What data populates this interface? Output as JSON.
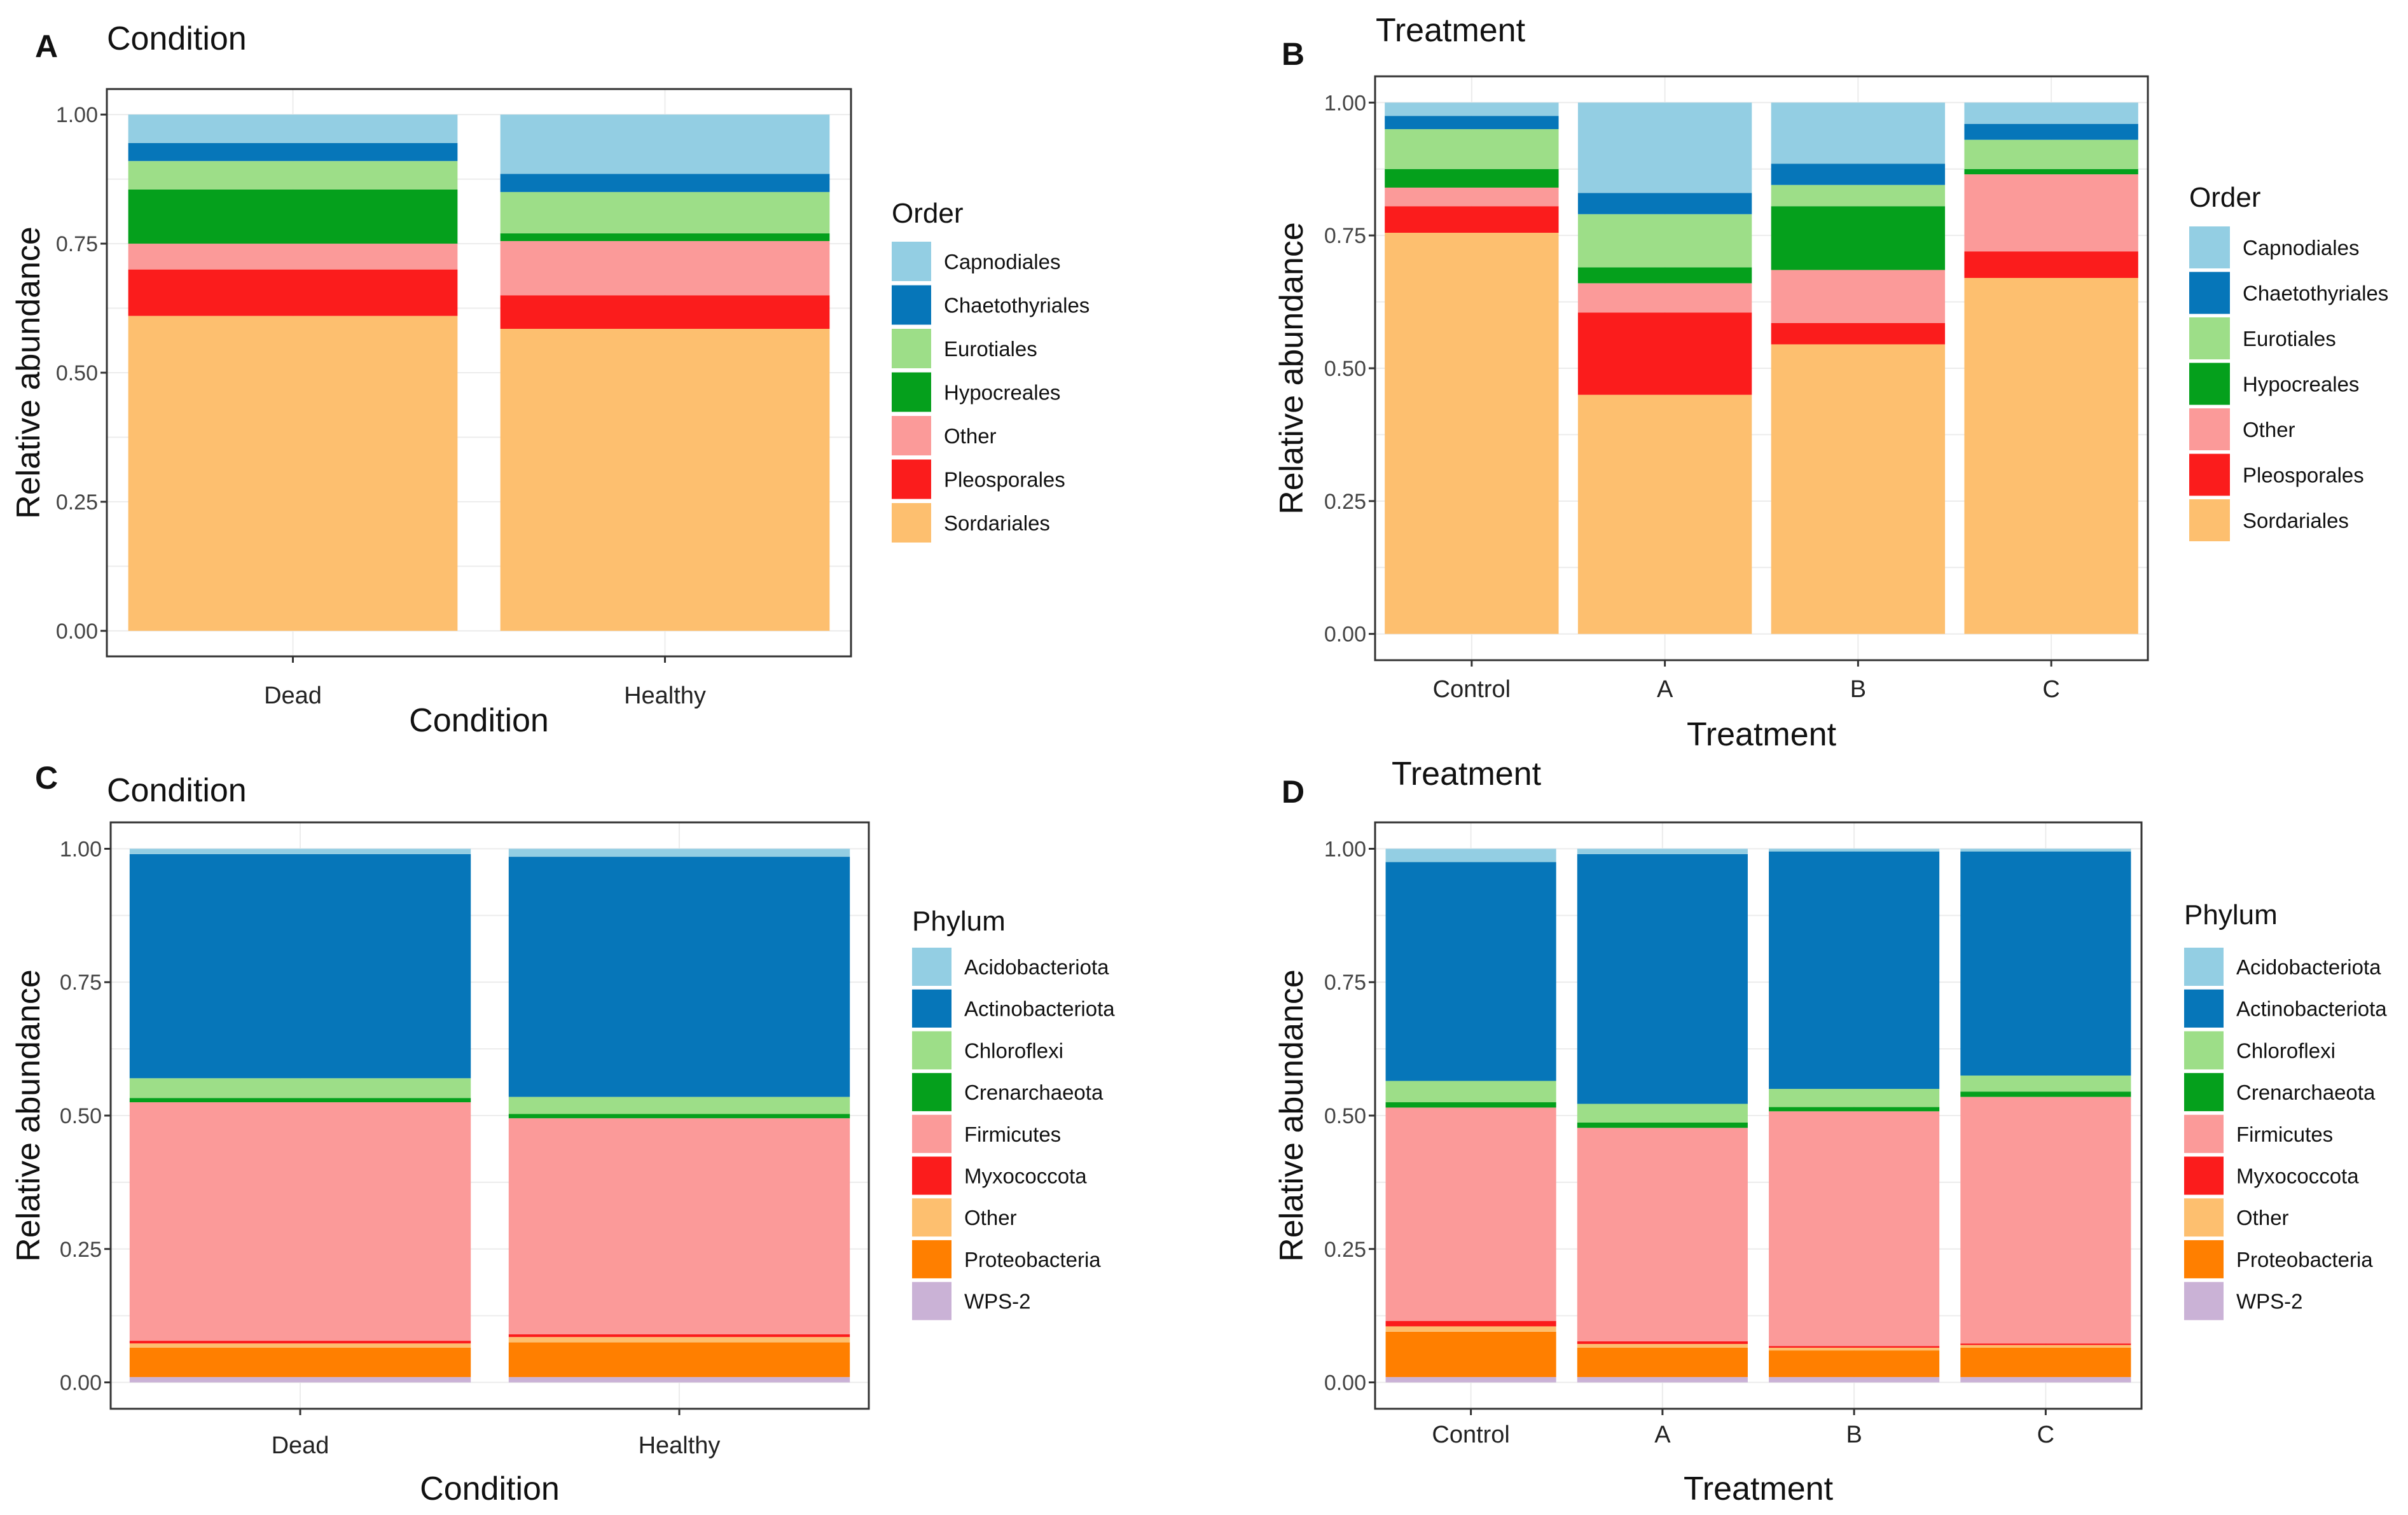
{
  "chart_data": [
    {
      "panel": "A",
      "type": "bar",
      "stacked": true,
      "title": "Condition",
      "xlabel": "Condition",
      "ylabel": "Relative abundance",
      "ylim": [
        0,
        1
      ],
      "yticks": [
        "0.00",
        "0.25",
        "0.50",
        "0.75",
        "1.00"
      ],
      "categories": [
        "Dead",
        "Healthy"
      ],
      "legend_title": "Order",
      "series": [
        {
          "name": "Sordariales",
          "color": "#FDBF6F",
          "values": [
            0.61,
            0.585
          ]
        },
        {
          "name": "Pleosporales",
          "color": "#FB1C1C",
          "values": [
            0.09,
            0.065
          ]
        },
        {
          "name": "Other",
          "color": "#FB9A99",
          "values": [
            0.05,
            0.105
          ]
        },
        {
          "name": "Hypocreales",
          "color": "#05A01C",
          "values": [
            0.105,
            0.015
          ]
        },
        {
          "name": "Eurotiales",
          "color": "#9DDE88",
          "values": [
            0.055,
            0.08
          ]
        },
        {
          "name": "Chaetothyriales",
          "color": "#0676B9",
          "values": [
            0.035,
            0.035
          ]
        },
        {
          "name": "Capnodiales",
          "color": "#93CEE3",
          "values": [
            0.055,
            0.115
          ]
        }
      ],
      "legend_order": [
        "Capnodiales",
        "Chaetothyriales",
        "Eurotiales",
        "Hypocreales",
        "Other",
        "Pleosporales",
        "Sordariales"
      ]
    },
    {
      "panel": "B",
      "type": "bar",
      "stacked": true,
      "title": "Treatment",
      "xlabel": "Treatment",
      "ylabel": "Relative abundance",
      "ylim": [
        0,
        1
      ],
      "yticks": [
        "0.00",
        "0.25",
        "0.50",
        "0.75",
        "1.00"
      ],
      "categories": [
        "Control",
        "A",
        "B",
        "C"
      ],
      "legend_title": "Order",
      "series": [
        {
          "name": "Sordariales",
          "color": "#FDBF6F",
          "values": [
            0.755,
            0.45,
            0.545,
            0.67
          ]
        },
        {
          "name": "Pleosporales",
          "color": "#FB1C1C",
          "values": [
            0.05,
            0.155,
            0.04,
            0.05
          ]
        },
        {
          "name": "Other",
          "color": "#FB9A99",
          "values": [
            0.035,
            0.055,
            0.1,
            0.145
          ]
        },
        {
          "name": "Hypocreales",
          "color": "#05A01C",
          "values": [
            0.035,
            0.03,
            0.12,
            0.01
          ]
        },
        {
          "name": "Eurotiales",
          "color": "#9DDE88",
          "values": [
            0.075,
            0.1,
            0.04,
            0.055
          ]
        },
        {
          "name": "Chaetothyriales",
          "color": "#0676B9",
          "values": [
            0.025,
            0.04,
            0.04,
            0.03
          ]
        },
        {
          "name": "Capnodiales",
          "color": "#93CEE3",
          "values": [
            0.025,
            0.17,
            0.115,
            0.04
          ]
        }
      ],
      "legend_order": [
        "Capnodiales",
        "Chaetothyriales",
        "Eurotiales",
        "Hypocreales",
        "Other",
        "Pleosporales",
        "Sordariales"
      ]
    },
    {
      "panel": "C",
      "type": "bar",
      "stacked": true,
      "title": "Condition",
      "xlabel": "Condition",
      "ylabel": "Relative abundance",
      "ylim": [
        0,
        1
      ],
      "yticks": [
        "0.00",
        "0.25",
        "0.50",
        "0.75",
        "1.00"
      ],
      "categories": [
        "Dead",
        "Healthy"
      ],
      "legend_title": "Phylum",
      "series": [
        {
          "name": "WPS-2",
          "color": "#CAB2D6",
          "values": [
            0.01,
            0.01
          ]
        },
        {
          "name": "Proteobacteria",
          "color": "#FF7F00",
          "values": [
            0.055,
            0.065
          ]
        },
        {
          "name": "Other",
          "color": "#FDBF6F",
          "values": [
            0.008,
            0.01
          ]
        },
        {
          "name": "Myxococcota",
          "color": "#FB1C1C",
          "values": [
            0.005,
            0.005
          ]
        },
        {
          "name": "Firmicutes",
          "color": "#FB9A99",
          "values": [
            0.447,
            0.405
          ]
        },
        {
          "name": "Crenarchaeota",
          "color": "#05A01C",
          "values": [
            0.008,
            0.008
          ]
        },
        {
          "name": "Chloroflexi",
          "color": "#9DDE88",
          "values": [
            0.037,
            0.032
          ]
        },
        {
          "name": "Actinobacteriota",
          "color": "#0676B9",
          "values": [
            0.42,
            0.45
          ]
        },
        {
          "name": "Acidobacteriota",
          "color": "#93CEE3",
          "values": [
            0.01,
            0.015
          ]
        }
      ],
      "legend_order": [
        "Acidobacteriota",
        "Actinobacteriota",
        "Chloroflexi",
        "Crenarchaeota",
        "Firmicutes",
        "Myxococcota",
        "Other",
        "Proteobacteria",
        "WPS-2"
      ]
    },
    {
      "panel": "D",
      "type": "bar",
      "stacked": true,
      "title": "Treatment",
      "xlabel": "Treatment",
      "ylabel": "Relative abundance",
      "ylim": [
        0,
        1
      ],
      "yticks": [
        "0.00",
        "0.25",
        "0.50",
        "0.75",
        "1.00"
      ],
      "categories": [
        "Control",
        "A",
        "B",
        "C"
      ],
      "legend_title": "Phylum",
      "series": [
        {
          "name": "WPS-2",
          "color": "#CAB2D6",
          "values": [
            0.01,
            0.01,
            0.01,
            0.01
          ]
        },
        {
          "name": "Proteobacteria",
          "color": "#FF7F00",
          "values": [
            0.085,
            0.055,
            0.05,
            0.055
          ]
        },
        {
          "name": "Other",
          "color": "#FDBF6F",
          "values": [
            0.01,
            0.007,
            0.005,
            0.005
          ]
        },
        {
          "name": "Myxococcota",
          "color": "#FB1C1C",
          "values": [
            0.01,
            0.005,
            0.003,
            0.003
          ]
        },
        {
          "name": "Firmicutes",
          "color": "#FB9A99",
          "values": [
            0.4,
            0.4,
            0.44,
            0.462
          ]
        },
        {
          "name": "Crenarchaeota",
          "color": "#05A01C",
          "values": [
            0.01,
            0.01,
            0.008,
            0.01
          ]
        },
        {
          "name": "Chloroflexi",
          "color": "#9DDE88",
          "values": [
            0.04,
            0.035,
            0.034,
            0.03
          ]
        },
        {
          "name": "Actinobacteriota",
          "color": "#0676B9",
          "values": [
            0.41,
            0.468,
            0.445,
            0.42
          ]
        },
        {
          "name": "Acidobacteriota",
          "color": "#93CEE3",
          "values": [
            0.025,
            0.01,
            0.005,
            0.005
          ]
        }
      ],
      "legend_order": [
        "Acidobacteriota",
        "Actinobacteriota",
        "Chloroflexi",
        "Crenarchaeota",
        "Firmicutes",
        "Myxococcota",
        "Other",
        "Proteobacteria",
        "WPS-2"
      ]
    }
  ]
}
